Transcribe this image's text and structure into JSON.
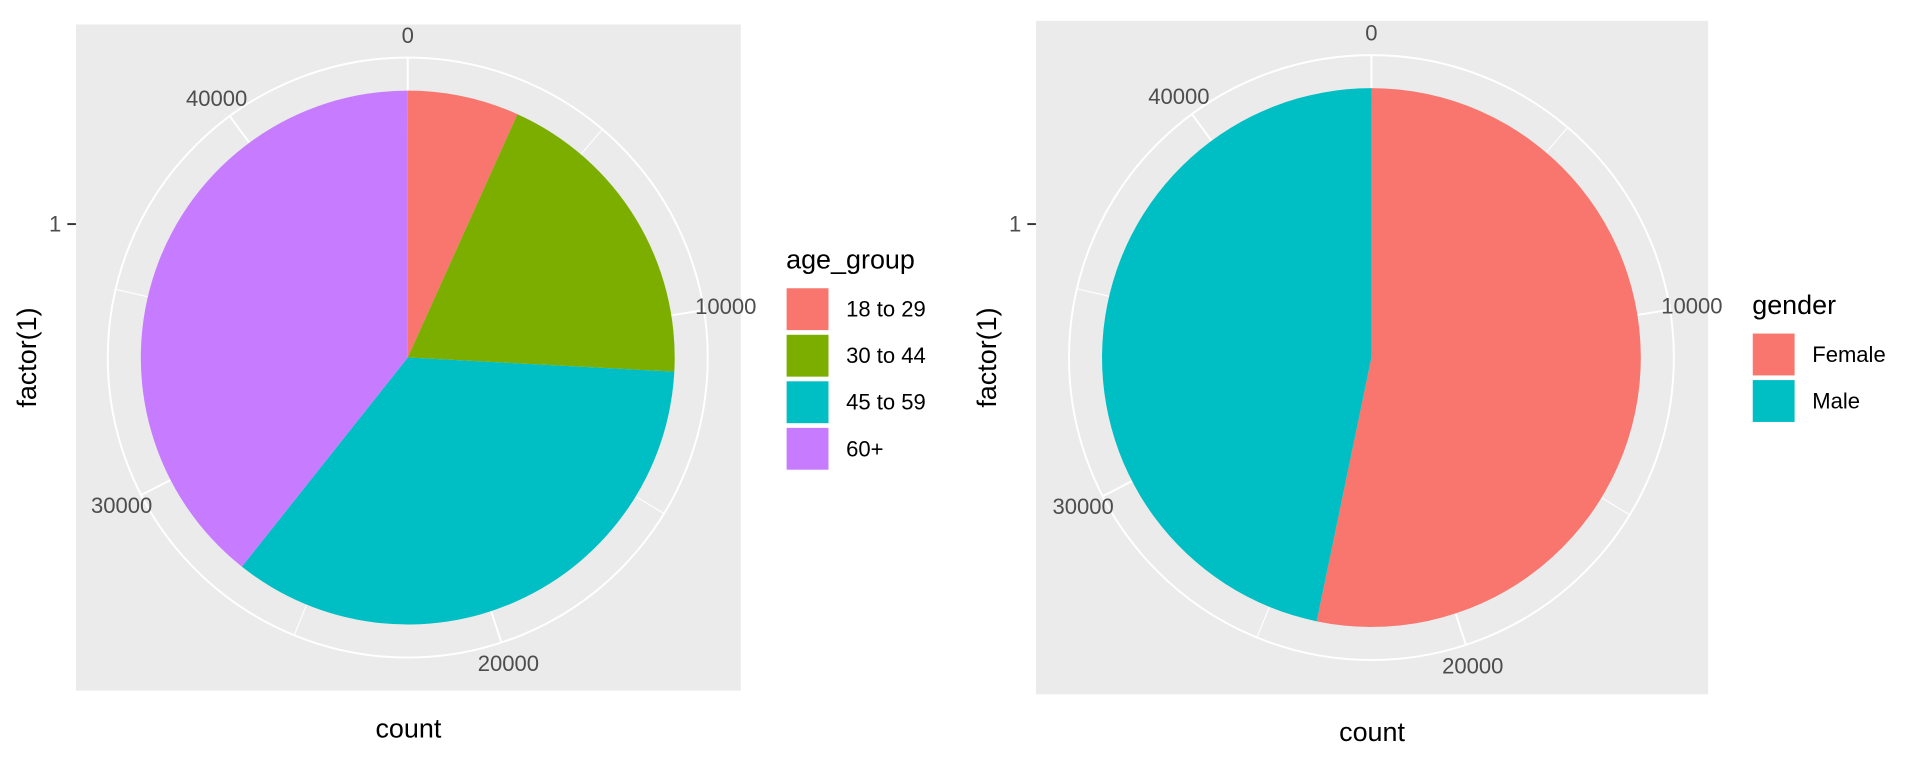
{
  "chart_data": [
    {
      "type": "pie",
      "title": "",
      "xlabel": "count",
      "ylabel": "factor(1)",
      "y_tick_labels": [
        "1"
      ],
      "angular_tick_labels": [
        "0",
        "10000",
        "20000",
        "30000",
        "40000"
      ],
      "angular_ticks": [
        0,
        10000,
        20000,
        30000,
        40000
      ],
      "total": 44500,
      "legend_title": "age_group",
      "legend_position": "right",
      "categories": [
        "18 to 29",
        "30 to 44",
        "45 to 59",
        "60+"
      ],
      "values": [
        3000,
        8500,
        15500,
        17500
      ],
      "colors": [
        "#F8766D",
        "#7CAE00",
        "#00BFC4",
        "#C77CFF"
      ],
      "grid": true,
      "panel_background": "#EBEBEB"
    },
    {
      "type": "pie",
      "title": "",
      "xlabel": "count",
      "ylabel": "factor(1)",
      "y_tick_labels": [
        "1"
      ],
      "angular_tick_labels": [
        "0",
        "10000",
        "20000",
        "30000",
        "40000"
      ],
      "angular_ticks": [
        0,
        10000,
        20000,
        30000,
        40000
      ],
      "total": 44500,
      "legend_title": "gender",
      "legend_position": "right",
      "categories": [
        "Female",
        "Male"
      ],
      "values": [
        23700,
        20800
      ],
      "colors": [
        "#F8766D",
        "#00BFC4"
      ],
      "grid": true,
      "panel_background": "#EBEBEB"
    }
  ]
}
